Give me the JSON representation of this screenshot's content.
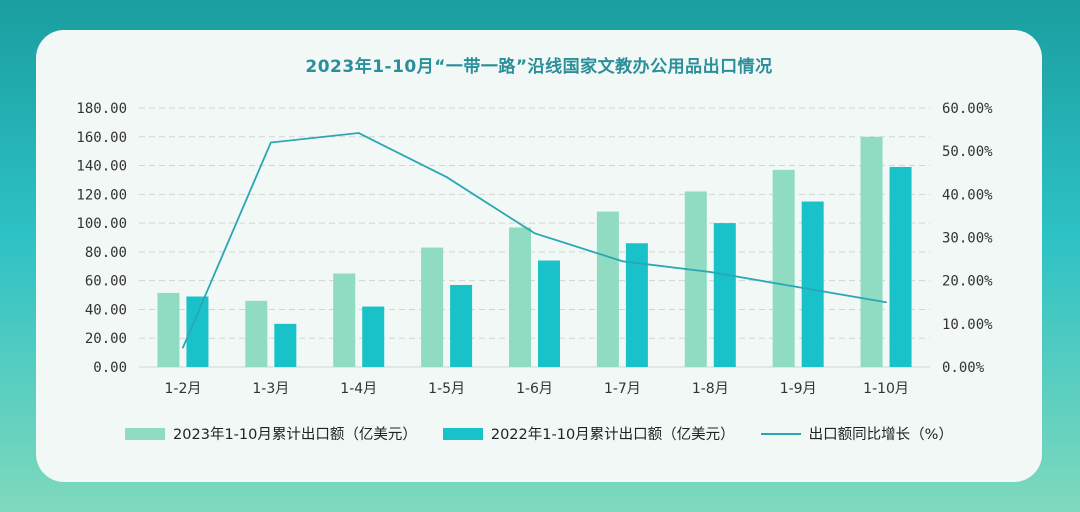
{
  "chart_data": {
    "type": "bar",
    "title": "2023年1-10月“一带一路”沿线国家文教办公用品出口情况",
    "categories": [
      "1-2月",
      "1-3月",
      "1-4月",
      "1-5月",
      "1-6月",
      "1-7月",
      "1-8月",
      "1-9月",
      "1-10月"
    ],
    "series": [
      {
        "name": "2023年1-10月累计出口额（亿美元）",
        "type": "bar",
        "axis": "left",
        "color": "#8fdcc2",
        "values": [
          51.5,
          46,
          65,
          83,
          97,
          108,
          122,
          137,
          160
        ]
      },
      {
        "name": "2022年1-10月累计出口额（亿美元）",
        "type": "bar",
        "axis": "left",
        "color": "#18c2c8",
        "values": [
          49,
          30,
          42,
          57,
          74,
          86,
          100,
          115,
          139
        ]
      },
      {
        "name": "出口额同比增长（%）",
        "type": "line",
        "axis": "right",
        "color": "#2aa7b5",
        "values": [
          4.5,
          52,
          54.2,
          44,
          31,
          24.5,
          22,
          18.5,
          15
        ]
      }
    ],
    "y_left": {
      "min": 0,
      "max": 180,
      "ticks": [
        "0.00",
        "20.00",
        "40.00",
        "60.00",
        "80.00",
        "100.00",
        "120.00",
        "140.00",
        "160.00",
        "180.00"
      ]
    },
    "y_right": {
      "min": 0,
      "max": 60,
      "ticks": [
        "0.00%",
        "10.00%",
        "20.00%",
        "30.00%",
        "40.00%",
        "50.00%",
        "60.00%"
      ]
    },
    "grid": true,
    "legend_position": "bottom"
  }
}
